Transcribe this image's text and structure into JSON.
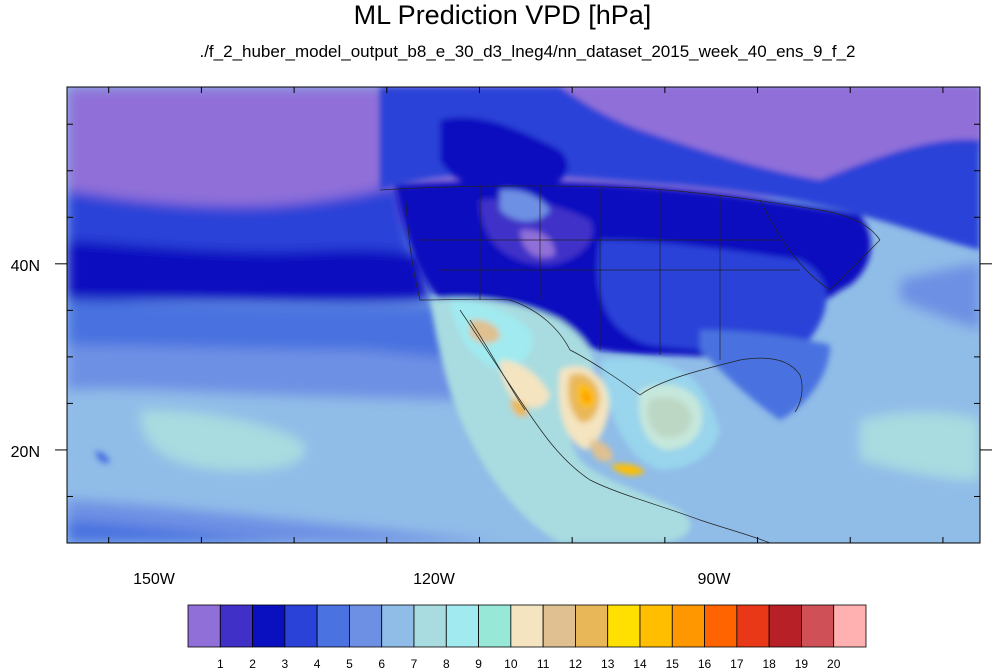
{
  "title": "ML Prediction VPD [hPa]",
  "subtitle": "./f_2_huber_model_output_b8_e_30_d3_lneg4/nn_dataset_2015_week_40_ens_9_f_2",
  "map": {
    "lat_ticks": [
      {
        "label": "40N",
        "lat": 40
      },
      {
        "label": "20N",
        "lat": 20
      }
    ],
    "lon_ticks": [
      {
        "label": "150W",
        "lon": -150
      },
      {
        "label": "120W",
        "lon": -120
      },
      {
        "label": "90W",
        "lon": -90
      }
    ],
    "extent": {
      "lon_min": -159.5,
      "lon_max": -61,
      "lat_min": 10,
      "lat_max": 59
    }
  },
  "colorbar": {
    "colors": [
      "#9070d8",
      "#4030c8",
      "#0a10c0",
      "#2a42d8",
      "#4a72e0",
      "#6e90e4",
      "#90bce8",
      "#a8dce0",
      "#a0eaf0",
      "#98e8d8",
      "#f4e4c0",
      "#e0c090",
      "#e8b858",
      "#ffe000",
      "#ffbe00",
      "#ff9800",
      "#ff6400",
      "#e83818",
      "#b82028",
      "#d05058",
      "#ffb0b0"
    ],
    "labels": [
      "1",
      "2",
      "3",
      "4",
      "5",
      "6",
      "7",
      "8",
      "9",
      "10",
      "11",
      "12",
      "13",
      "14",
      "15",
      "16",
      "17",
      "18",
      "19",
      "20"
    ]
  }
}
